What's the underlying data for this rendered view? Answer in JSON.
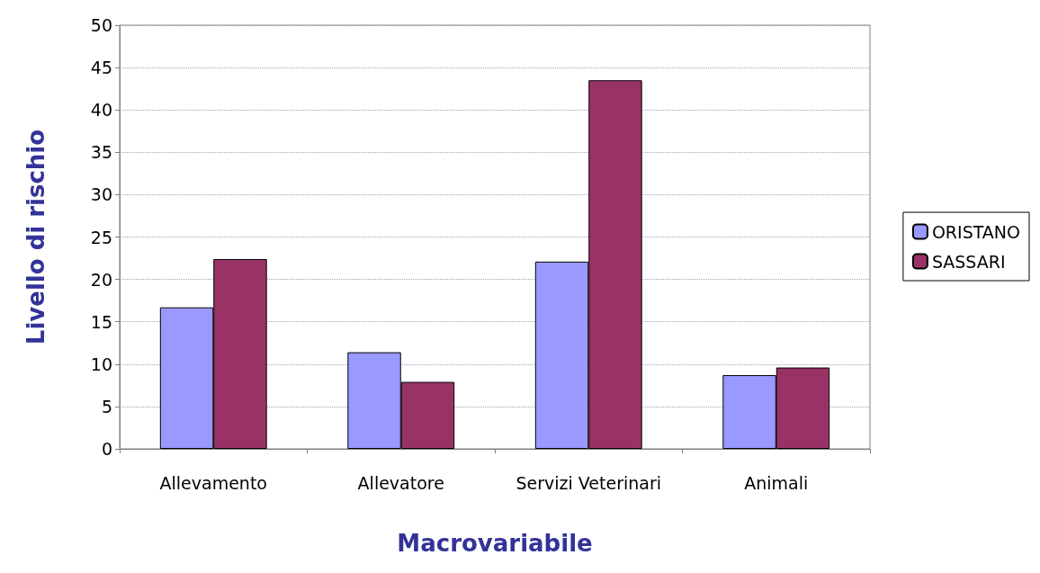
{
  "chart_data": {
    "type": "bar",
    "xlabel": "Macrovariabile",
    "ylabel": "Livello di rischio",
    "categories": [
      "Allevamento",
      "Allevatore",
      "Servizi Veterinari",
      "Animali"
    ],
    "series": [
      {
        "name": "ORISTANO",
        "color": "#9999ff",
        "values": [
          16.7,
          11.4,
          22.1,
          8.7
        ]
      },
      {
        "name": "SASSARI",
        "color": "#993366",
        "values": [
          22.4,
          7.9,
          43.5,
          9.6
        ]
      }
    ],
    "ylim": [
      0,
      50
    ],
    "yticks": [
      0,
      5,
      10,
      15,
      20,
      25,
      30,
      35,
      40,
      45,
      50
    ],
    "grid": "y",
    "legend": "right"
  }
}
